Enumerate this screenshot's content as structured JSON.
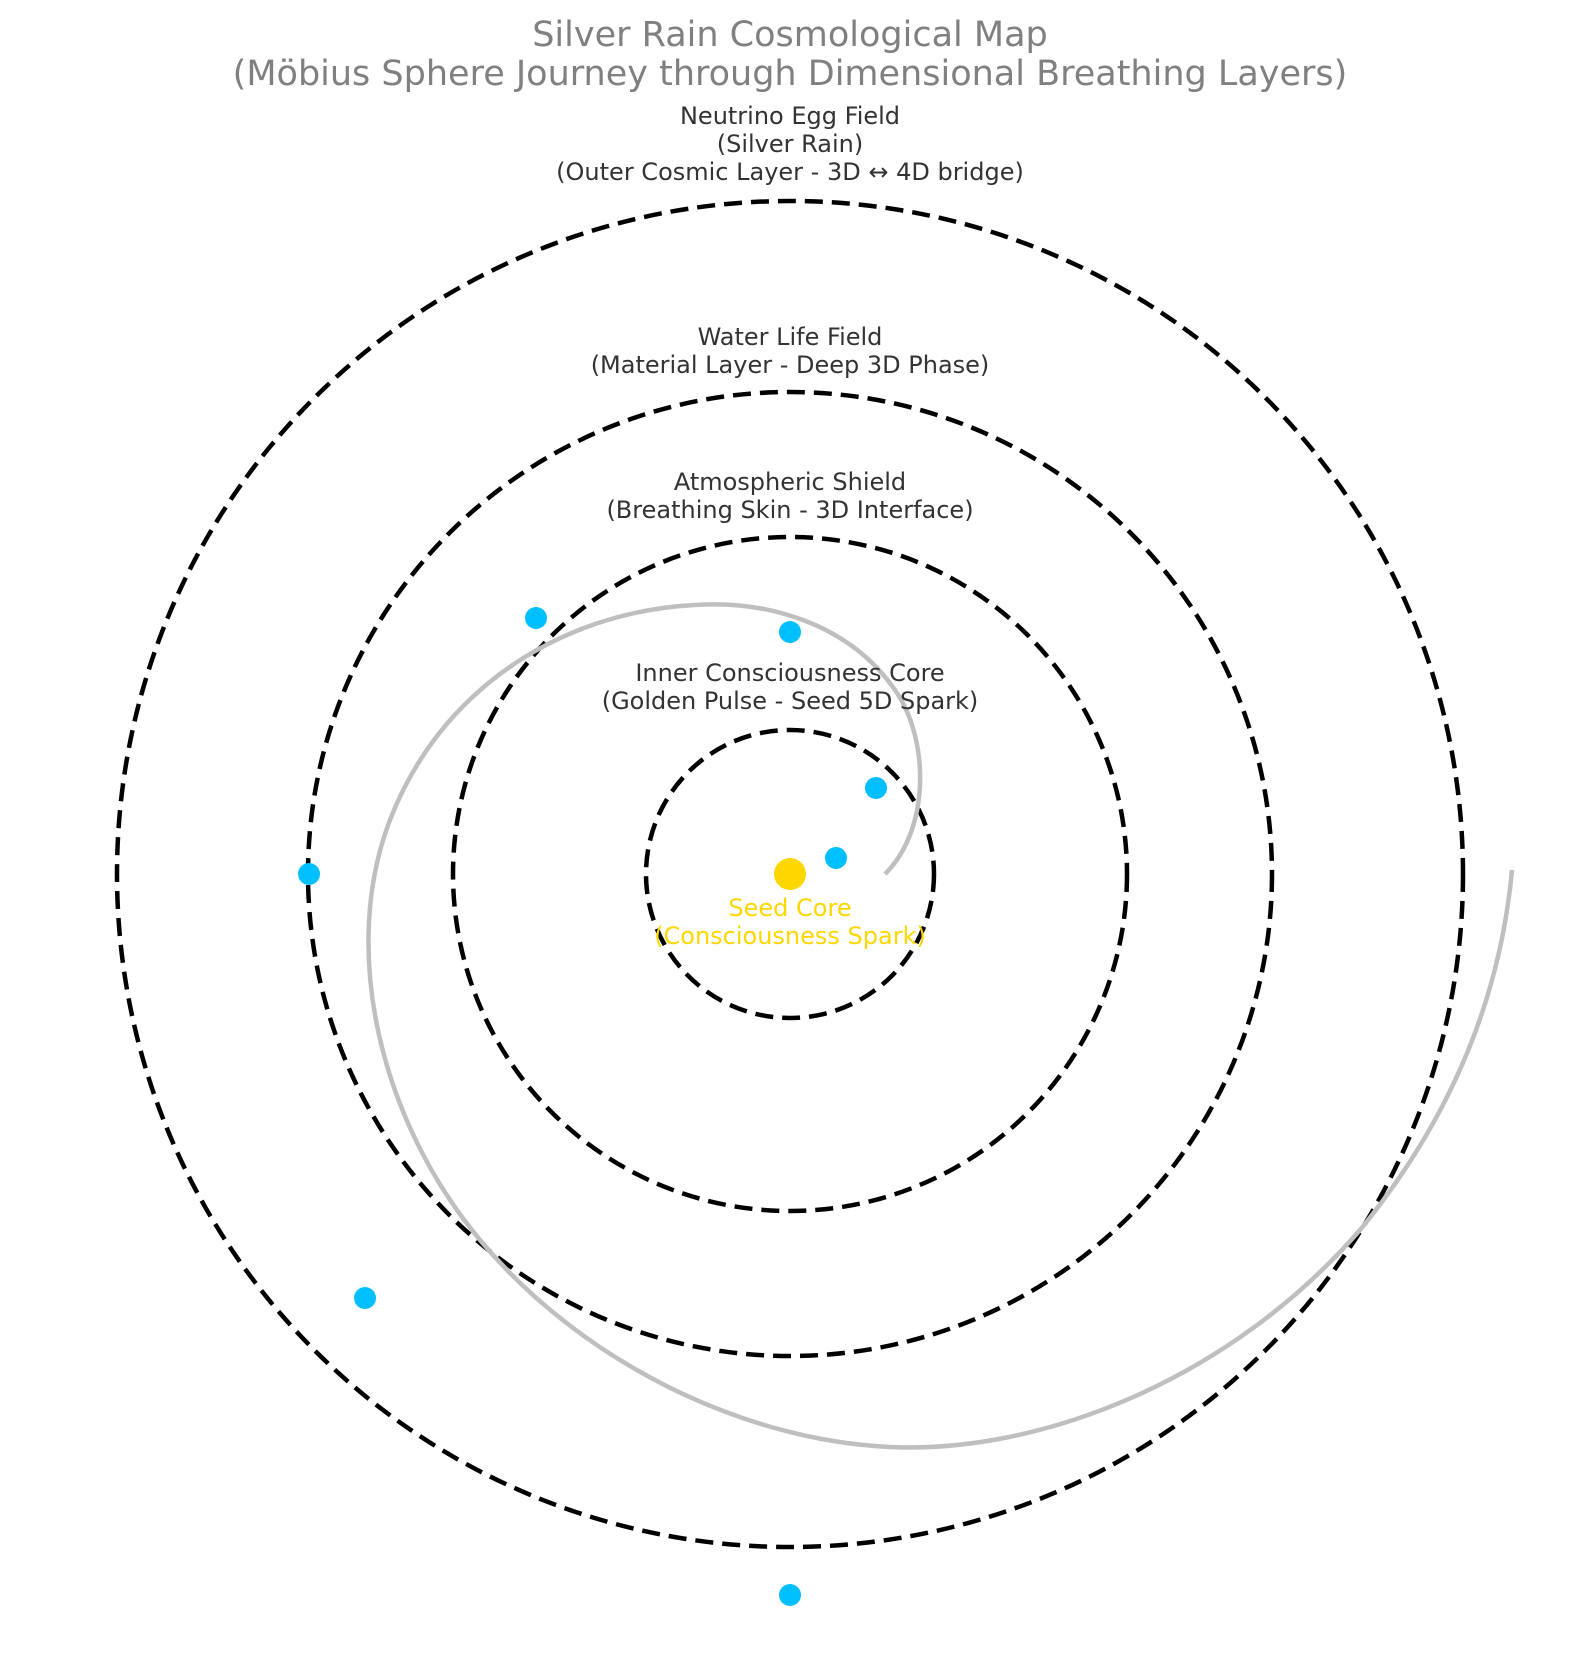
{
  "title": {
    "line1": "Silver Rain Cosmological Map",
    "line2": "(Möbius Sphere Journey through Dimensional Breathing Layers)"
  },
  "layers": [
    {
      "id": "outer",
      "lines": [
        "Neutrino Egg Field",
        "(Silver Rain)",
        "(Outer Cosmic Layer - 3D ↔ 4D bridge)"
      ]
    },
    {
      "id": "water",
      "lines": [
        "Water Life Field",
        "(Material Layer - Deep 3D Phase)"
      ]
    },
    {
      "id": "atmo",
      "lines": [
        "Atmospheric Shield",
        "(Breathing Skin - 3D Interface)"
      ]
    },
    {
      "id": "inner",
      "lines": [
        "Inner Consciousness Core",
        "(Golden Pulse - Seed 5D Spark)"
      ]
    }
  ],
  "core": {
    "lines": [
      "Seed Core",
      "(Consciousness Spark)"
    ]
  },
  "colors": {
    "title": "#808080",
    "ring_label": "#333333",
    "ring": "#000000",
    "spiral": "#bfbfbf",
    "dot": "#00bfff",
    "core": "#ffd700"
  }
}
